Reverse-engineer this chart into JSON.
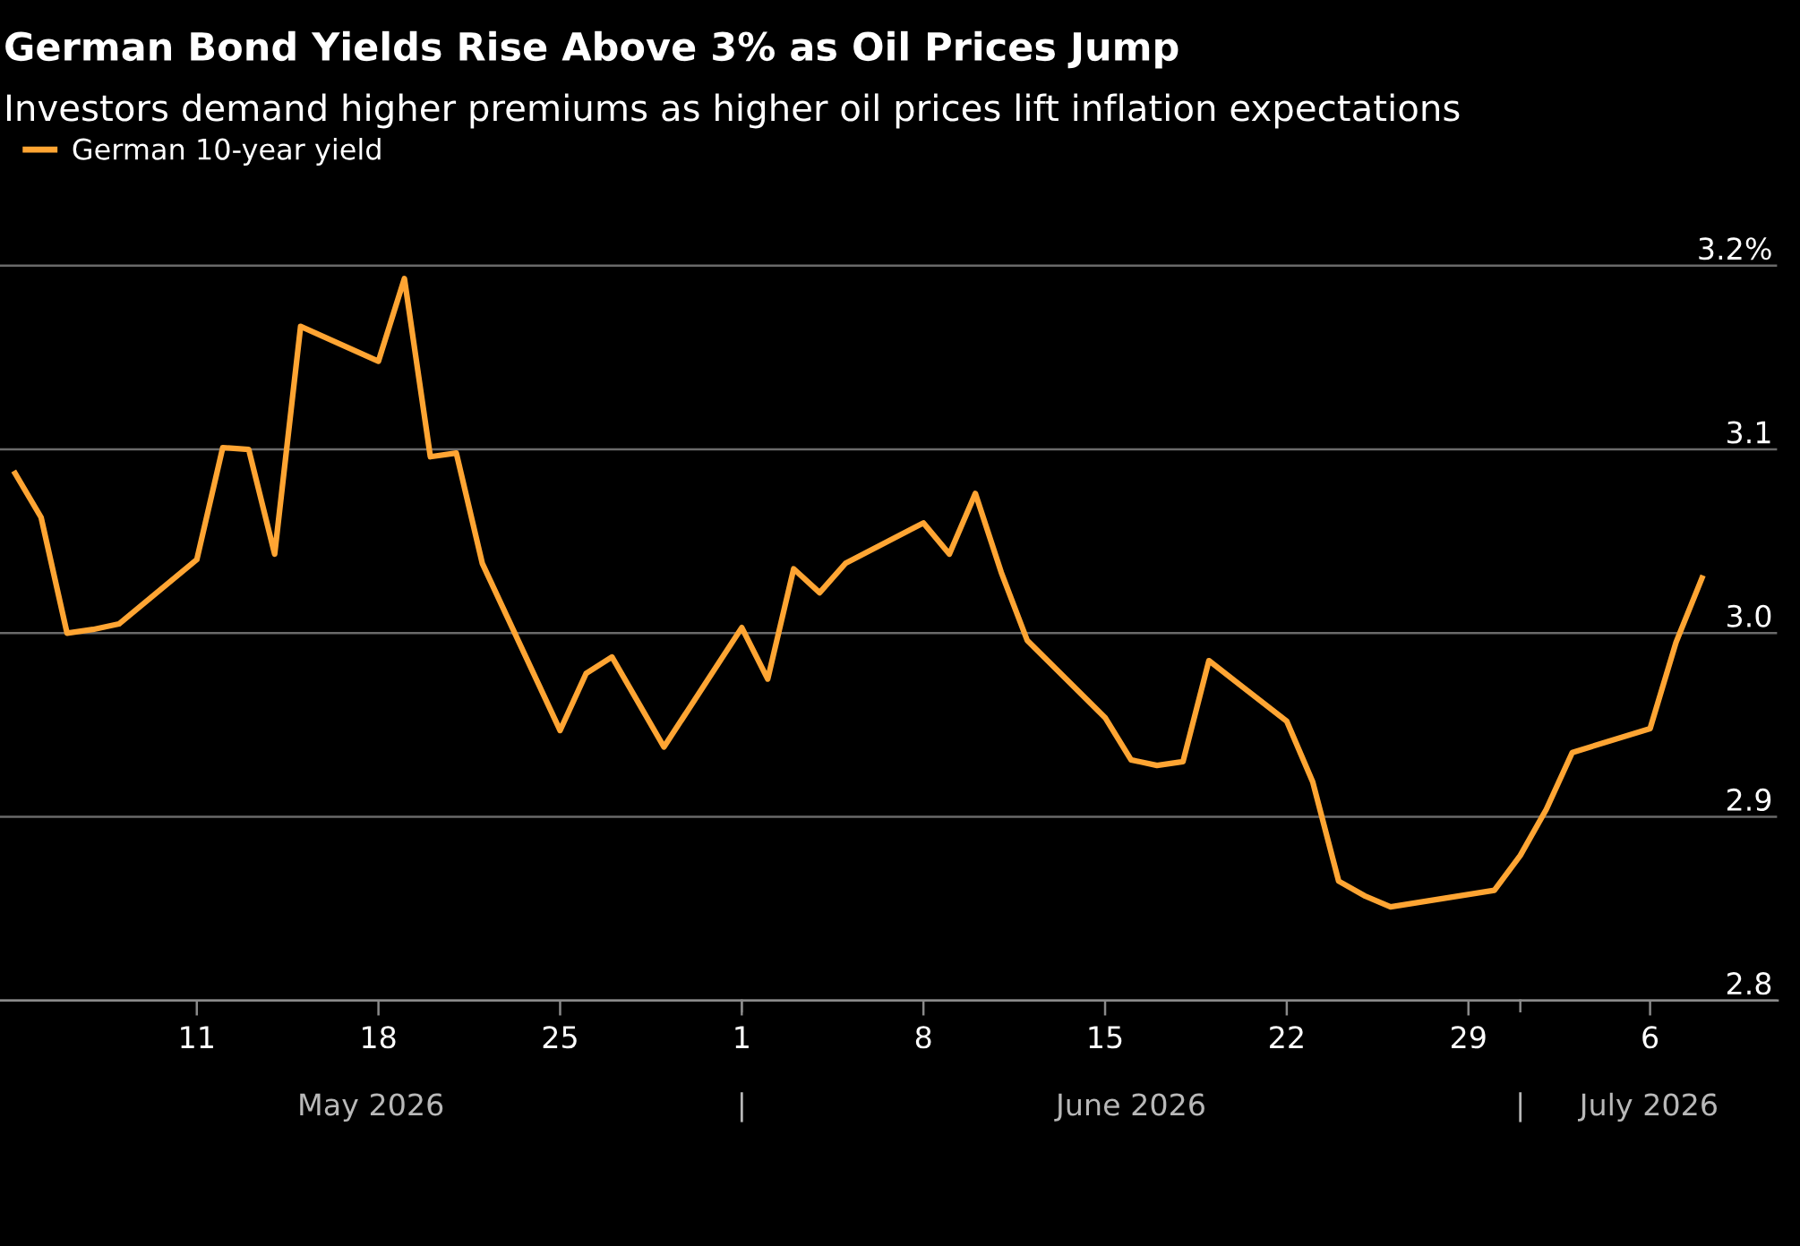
{
  "chart_data": {
    "type": "line",
    "title": "German Bond Yields Rise Above 3% as Oil Prices Jump",
    "subtitle": "Investors demand higher premiums as higher oil prices lift inflation expectations",
    "x": [
      "2026-05-04",
      "2026-05-05",
      "2026-05-06",
      "2026-05-07",
      "2026-05-08",
      "2026-05-11",
      "2026-05-12",
      "2026-05-13",
      "2026-05-14",
      "2026-05-15",
      "2026-05-18",
      "2026-05-19",
      "2026-05-20",
      "2026-05-21",
      "2026-05-22",
      "2026-05-25",
      "2026-05-26",
      "2026-05-27",
      "2026-05-29",
      "2026-06-01",
      "2026-06-02",
      "2026-06-03",
      "2026-06-04",
      "2026-06-05",
      "2026-06-08",
      "2026-06-09",
      "2026-06-10",
      "2026-06-11",
      "2026-06-12",
      "2026-06-15",
      "2026-06-16",
      "2026-06-17",
      "2026-06-18",
      "2026-06-19",
      "2026-06-22",
      "2026-06-23",
      "2026-06-24",
      "2026-06-25",
      "2026-06-26",
      "2026-06-30",
      "2026-07-01",
      "2026-07-02",
      "2026-07-03",
      "2026-07-06",
      "2026-07-07",
      "2026-07-08"
    ],
    "series": [
      {
        "name": "German 10-year yield",
        "color": "#ffa533",
        "values": [
          3.087,
          3.063,
          3.0,
          3.002,
          3.005,
          3.04,
          3.101,
          3.1,
          3.043,
          3.167,
          3.148,
          3.193,
          3.096,
          3.098,
          3.038,
          2.947,
          2.978,
          2.987,
          2.938,
          3.003,
          2.975,
          3.035,
          3.022,
          3.038,
          3.06,
          3.043,
          3.076,
          3.033,
          2.996,
          2.954,
          2.931,
          2.928,
          2.93,
          2.985,
          2.952,
          2.919,
          2.865,
          2.857,
          2.851,
          2.86,
          2.879,
          2.904,
          2.935,
          2.948,
          2.995,
          3.03
        ]
      }
    ],
    "xlim": [
      "2026-05-03T10:00",
      "2026-07-10T22:00"
    ],
    "xticks": [
      {
        "value": "2026-05-11",
        "label": "11"
      },
      {
        "value": "2026-05-18",
        "label": "18"
      },
      {
        "value": "2026-05-25",
        "label": "25"
      },
      {
        "value": "2026-06-01",
        "label": "1"
      },
      {
        "value": "2026-06-08",
        "label": "8"
      },
      {
        "value": "2026-06-15",
        "label": "15"
      },
      {
        "value": "2026-06-22",
        "label": "22"
      },
      {
        "value": "2026-06-29",
        "label": "29"
      },
      {
        "value": "2026-07-06",
        "label": "6"
      }
    ],
    "annotations": [
      "May 2026",
      "|",
      "June 2026",
      "|",
      "July 2026"
    ],
    "ylim": [
      2.8,
      3.23
    ],
    "yticks": [
      2.8,
      2.9,
      {
        "value": 3.0,
        "label": "3.0"
      },
      3.1,
      {
        "value": 3.2,
        "label": "3.2%"
      }
    ],
    "grid": "y",
    "legend": "top left",
    "line_style": "solid",
    "marker": "none"
  }
}
